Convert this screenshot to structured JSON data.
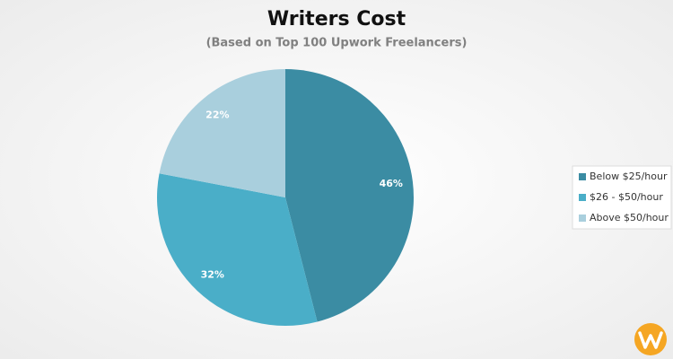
{
  "chart_data": {
    "type": "pie",
    "title": "Writers Cost",
    "subtitle": "(Based on Top 100 Upwork Freelancers)",
    "categories": [
      "Below $25/hour",
      "$26 - $50/hour",
      "Above $50/hour"
    ],
    "values": [
      46,
      32,
      22
    ],
    "value_labels": [
      "46%",
      "32%",
      "22%"
    ],
    "colors": [
      "#3b8ca3",
      "#4aaec8",
      "#a9cfdd"
    ],
    "legend": "right"
  }
}
